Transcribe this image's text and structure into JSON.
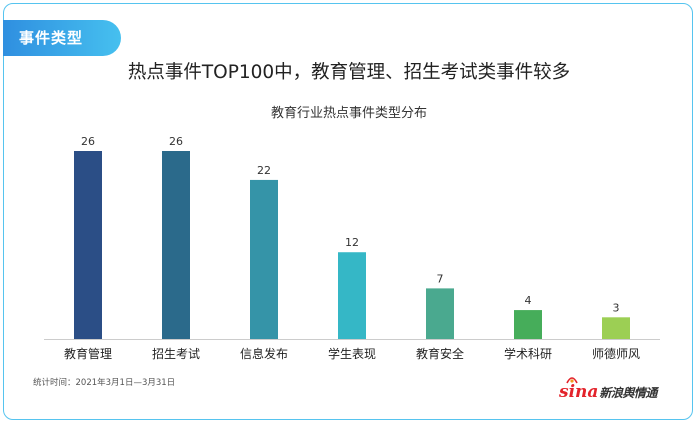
{
  "tag": "事件类型",
  "headline": "热点事件TOP100中，教育管理、招生考试类事件较多",
  "source": "统计时间：2021年3月1日—3月31日",
  "logo": {
    "mark": "sina",
    "text": "新浪舆情通"
  },
  "chart_data": {
    "type": "bar",
    "title": "教育行业热点事件类型分布",
    "categories": [
      "教育管理",
      "招生考试",
      "信息发布",
      "学生表现",
      "教育安全",
      "学术科研",
      "师德师风"
    ],
    "values": [
      26,
      26,
      22,
      12,
      7,
      4,
      3
    ],
    "colors": [
      "#2b4e86",
      "#2b6a8b",
      "#3594a8",
      "#35b7c6",
      "#4aa98f",
      "#46ad5a",
      "#9ccf54"
    ],
    "ylim": [
      0,
      26
    ],
    "grid": false,
    "legend": "none"
  }
}
